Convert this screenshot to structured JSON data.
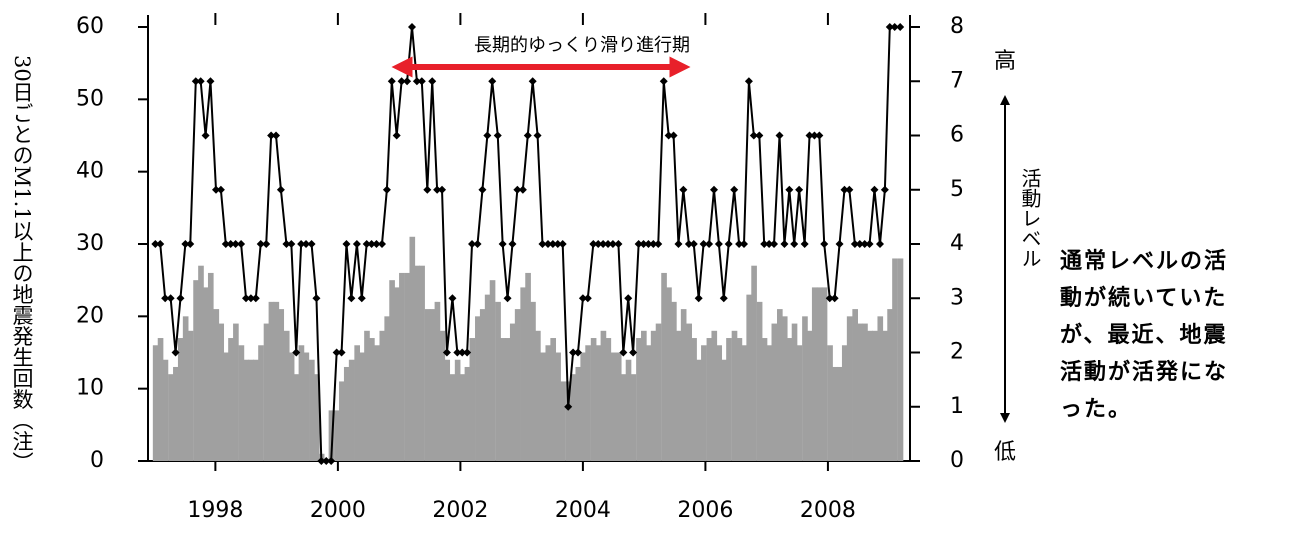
{
  "chart_data": {
    "type": "combo",
    "ylabel": "30日ごとのM1.1以上の地震発生回数（注）",
    "y2label": "活動レベル",
    "y2_high": "高",
    "y2_low": "低",
    "annotation": {
      "text": "長期的ゆっくり滑り進行期",
      "color": "#e8202a"
    },
    "note": [
      "通常レベルの活",
      "動が続いていた",
      "が、最近、地震",
      "活動が活発にな",
      "った。"
    ],
    "xlim": [
      1996.9,
      2009.34
    ],
    "xticks": [
      1998,
      2000,
      2002,
      2004,
      2006,
      2008
    ],
    "ylim": [
      0,
      60
    ],
    "yticks": [
      0,
      10,
      20,
      30,
      40,
      50,
      60
    ],
    "y2lim": [
      0,
      8
    ],
    "y2ticks": [
      0,
      1,
      2,
      3,
      4,
      5,
      6,
      7,
      8
    ],
    "x": [
      1997.02,
      1997.1,
      1997.18,
      1997.27,
      1997.35,
      1997.43,
      1997.51,
      1997.59,
      1997.68,
      1997.76,
      1997.84,
      1997.92,
      1998.01,
      1998.09,
      1998.17,
      1998.25,
      1998.33,
      1998.42,
      1998.5,
      1998.58,
      1998.66,
      1998.74,
      1998.83,
      1998.91,
      1998.99,
      1999.07,
      1999.16,
      1999.24,
      1999.32,
      1999.4,
      1999.48,
      1999.57,
      1999.65,
      1999.73,
      1999.81,
      1999.89,
      1999.98,
      2000.06,
      2000.14,
      2000.22,
      2000.31,
      2000.39,
      2000.47,
      2000.55,
      2000.63,
      2000.72,
      2000.8,
      2000.88,
      2000.96,
      2001.04,
      2001.13,
      2001.21,
      2001.29,
      2001.37,
      2001.46,
      2001.54,
      2001.62,
      2001.7,
      2001.78,
      2001.87,
      2001.95,
      2002.03,
      2002.11,
      2002.19,
      2002.28,
      2002.36,
      2002.44,
      2002.52,
      2002.61,
      2002.69,
      2002.77,
      2002.85,
      2002.93,
      2003.02,
      2003.1,
      2003.18,
      2003.26,
      2003.34,
      2003.43,
      2003.51,
      2003.59,
      2003.67,
      2003.76,
      2003.84,
      2003.92,
      2004.0,
      2004.08,
      2004.17,
      2004.25,
      2004.33,
      2004.41,
      2004.49,
      2004.58,
      2004.66,
      2004.74,
      2004.82,
      2004.91,
      2004.99,
      2005.07,
      2005.15,
      2005.23,
      2005.32,
      2005.4,
      2005.48,
      2005.56,
      2005.64,
      2005.73,
      2005.81,
      2005.89,
      2005.97,
      2006.06,
      2006.14,
      2006.22,
      2006.3,
      2006.38,
      2006.47,
      2006.55,
      2006.63,
      2006.71,
      2006.79,
      2006.88,
      2006.96,
      2007.04,
      2007.12,
      2007.21,
      2007.29,
      2007.37,
      2007.45,
      2007.53,
      2007.62,
      2007.7,
      2007.78,
      2007.86,
      2007.94,
      2008.03,
      2008.11,
      2008.19,
      2008.27,
      2008.35,
      2008.44,
      2008.52,
      2008.6,
      2008.68,
      2008.76,
      2008.85,
      2008.93,
      2009.01,
      2009.09,
      2009.18
    ],
    "series": [
      {
        "type": "bar",
        "color": "#a0a0a0",
        "values": [
          16,
          17,
          14,
          12,
          13,
          17,
          20,
          18,
          25,
          27,
          24,
          26,
          21,
          19,
          15,
          17,
          19,
          16,
          14,
          14,
          14,
          16,
          19,
          22,
          22,
          21,
          18,
          15,
          12,
          16,
          15,
          14,
          12,
          1,
          0,
          7,
          7,
          11,
          13,
          14,
          16,
          15,
          18,
          17,
          16,
          18,
          20,
          25,
          24,
          26,
          26,
          31,
          27,
          27,
          21,
          21,
          22,
          18,
          14,
          12,
          14,
          12,
          13,
          17,
          20,
          21,
          23,
          25,
          22,
          17,
          17,
          19,
          21,
          24,
          26,
          22,
          18,
          15,
          16,
          17,
          15,
          11,
          11,
          12,
          13,
          15,
          16,
          17,
          16,
          18,
          17,
          15,
          15,
          12,
          14,
          12,
          17,
          18,
          16,
          18,
          19,
          26,
          24,
          22,
          18,
          21,
          19,
          17,
          14,
          16,
          17,
          18,
          16,
          14,
          17,
          18,
          17,
          16,
          23,
          27,
          22,
          17,
          16,
          19,
          21,
          20,
          17,
          19,
          16,
          20,
          18,
          24,
          24,
          24,
          16,
          13,
          13,
          16,
          20,
          21,
          19,
          19,
          18,
          18,
          20,
          18,
          21,
          28,
          28
        ]
      },
      {
        "type": "line",
        "axis": "y2",
        "color": "#000000",
        "marker": "diamond",
        "values": [
          4,
          4,
          3,
          3,
          2,
          3,
          4,
          4,
          7,
          7,
          6,
          7,
          5,
          5,
          4,
          4,
          4,
          4,
          3,
          3,
          3,
          4,
          4,
          6,
          6,
          5,
          4,
          4,
          2,
          4,
          4,
          4,
          3,
          0,
          0,
          0,
          2,
          2,
          4,
          3,
          4,
          3,
          4,
          4,
          4,
          4,
          5,
          7,
          6,
          7,
          7,
          8,
          7,
          7,
          5,
          7,
          5,
          5,
          2,
          3,
          2,
          2,
          2,
          4,
          4,
          5,
          6,
          7,
          6,
          4,
          3,
          4,
          5,
          5,
          6,
          7,
          6,
          4,
          4,
          4,
          4,
          4,
          1,
          2,
          2,
          3,
          3,
          4,
          4,
          4,
          4,
          4,
          4,
          2,
          3,
          2,
          4,
          4,
          4,
          4,
          4,
          7,
          6,
          6,
          4,
          5,
          4,
          4,
          3,
          4,
          4,
          5,
          4,
          3,
          4,
          5,
          4,
          4,
          7,
          6,
          6,
          4,
          4,
          4,
          6,
          4,
          5,
          4,
          5,
          4,
          6,
          6,
          6,
          4,
          3,
          3,
          4,
          5,
          5,
          4,
          4,
          4,
          4,
          5,
          4,
          5,
          8,
          8,
          8
        ]
      }
    ]
  }
}
